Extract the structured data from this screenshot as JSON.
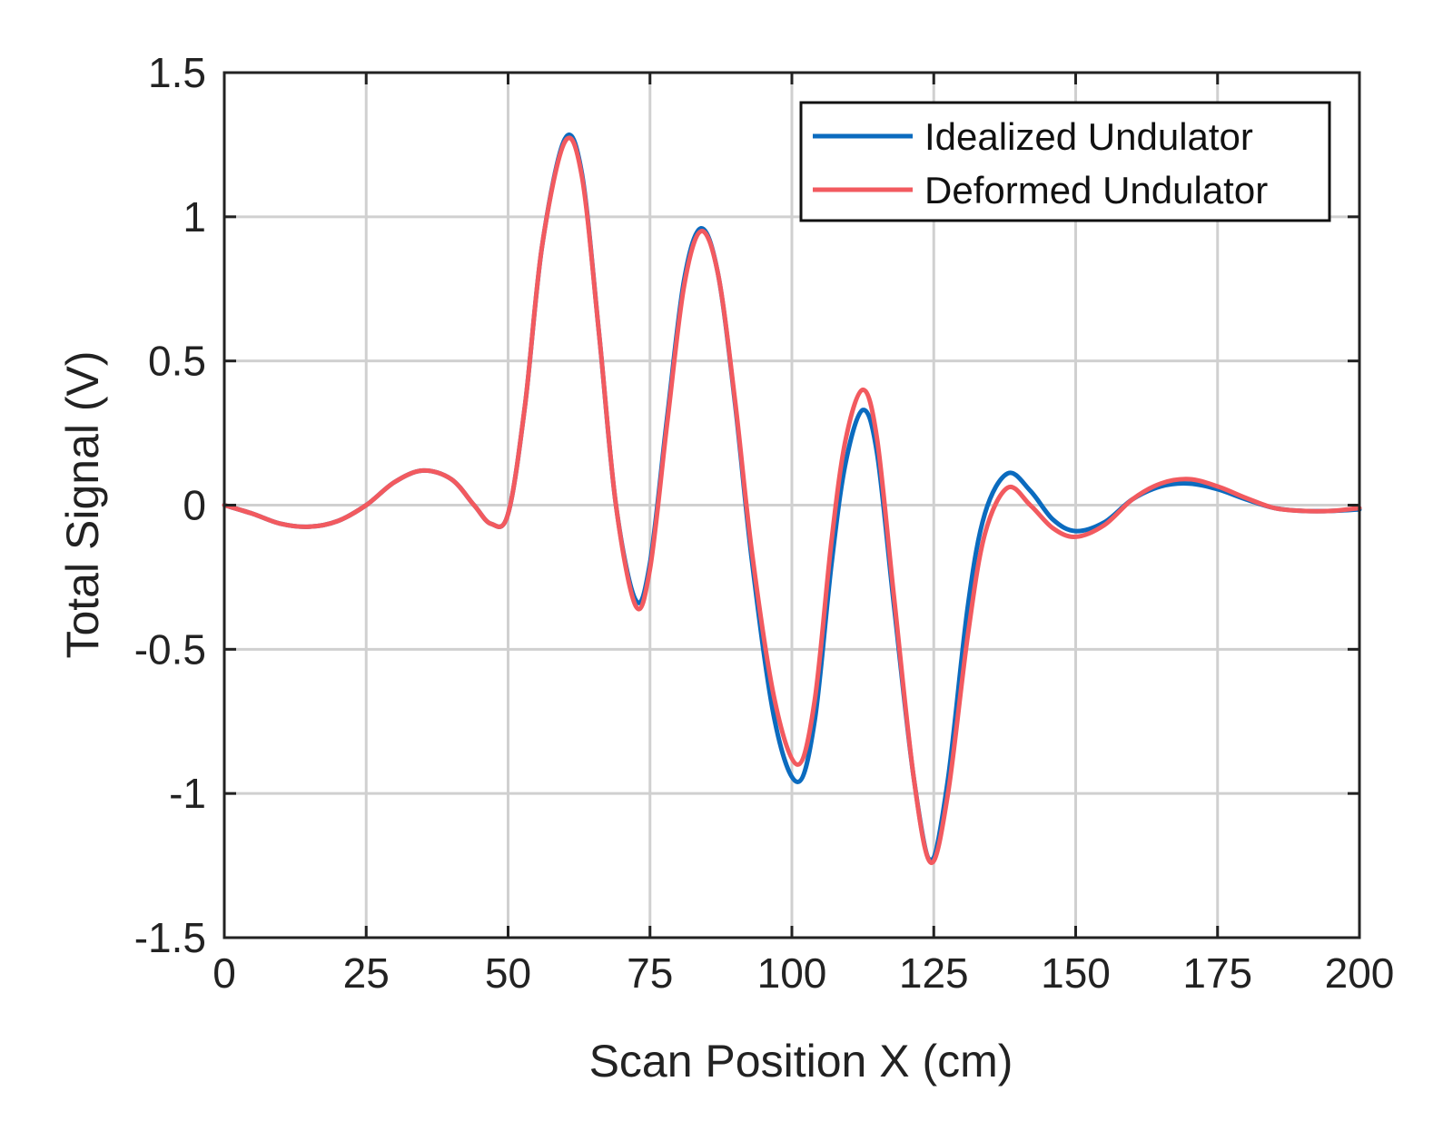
{
  "chart_data": {
    "type": "line",
    "title": "",
    "xlabel": "Scan Position X (cm)",
    "ylabel": "Total Signal (V)",
    "xlim": [
      0,
      200
    ],
    "ylim": [
      -1.5,
      1.5
    ],
    "xticks": [
      0,
      25,
      50,
      75,
      100,
      125,
      150,
      175,
      200
    ],
    "yticks": [
      1.5,
      1,
      0.5,
      0,
      -0.5,
      -1,
      -1.5
    ],
    "xtick_labels": [
      "0",
      "25",
      "50",
      "75",
      "100",
      "125",
      "150",
      "175",
      "200"
    ],
    "ytick_labels": [
      "1.5",
      "1",
      "0.5",
      "0",
      "-0.5",
      "-1",
      "-1.5"
    ],
    "grid": true,
    "legend_position": "top-right",
    "series": [
      {
        "name": "Idealized Undulator",
        "color": "#0b6bbf",
        "points": [
          [
            0,
            0
          ],
          [
            5,
            -0.03
          ],
          [
            10,
            -0.065
          ],
          [
            15,
            -0.075
          ],
          [
            20,
            -0.055
          ],
          [
            25,
            0.0
          ],
          [
            30,
            0.08
          ],
          [
            35,
            0.12
          ],
          [
            40,
            0.09
          ],
          [
            44,
            0.0
          ],
          [
            47,
            -0.065
          ],
          [
            50,
            -0.03
          ],
          [
            53,
            0.35
          ],
          [
            56,
            0.9
          ],
          [
            60,
            1.27
          ],
          [
            63,
            1.15
          ],
          [
            66,
            0.6
          ],
          [
            69,
            0.0
          ],
          [
            72.5,
            -0.33
          ],
          [
            75,
            -0.2
          ],
          [
            78,
            0.3
          ],
          [
            81,
            0.78
          ],
          [
            84,
            0.96
          ],
          [
            87,
            0.8
          ],
          [
            90,
            0.35
          ],
          [
            93,
            -0.2
          ],
          [
            97,
            -0.75
          ],
          [
            101,
            -0.96
          ],
          [
            104,
            -0.75
          ],
          [
            107,
            -0.2
          ],
          [
            109.5,
            0.15
          ],
          [
            112.5,
            0.33
          ],
          [
            115,
            0.18
          ],
          [
            118,
            -0.35
          ],
          [
            121.5,
            -0.95
          ],
          [
            124.5,
            -1.23
          ],
          [
            127.5,
            -0.95
          ],
          [
            131,
            -0.35
          ],
          [
            134,
            -0.03
          ],
          [
            138,
            0.11
          ],
          [
            142,
            0.05
          ],
          [
            146,
            -0.05
          ],
          [
            150,
            -0.09
          ],
          [
            155,
            -0.06
          ],
          [
            160,
            0.02
          ],
          [
            165,
            0.065
          ],
          [
            170,
            0.075
          ],
          [
            175,
            0.055
          ],
          [
            180,
            0.02
          ],
          [
            185,
            -0.01
          ],
          [
            190,
            -0.02
          ],
          [
            195,
            -0.02
          ],
          [
            200,
            -0.015
          ]
        ]
      },
      {
        "name": "Deformed Undulator",
        "color": "#f25a5f",
        "points": [
          [
            0,
            0
          ],
          [
            5,
            -0.03
          ],
          [
            10,
            -0.065
          ],
          [
            15,
            -0.075
          ],
          [
            20,
            -0.055
          ],
          [
            25,
            0.0
          ],
          [
            30,
            0.08
          ],
          [
            35,
            0.12
          ],
          [
            40,
            0.09
          ],
          [
            44,
            0.0
          ],
          [
            47,
            -0.065
          ],
          [
            50,
            -0.03
          ],
          [
            53,
            0.35
          ],
          [
            56,
            0.9
          ],
          [
            60,
            1.26
          ],
          [
            63,
            1.14
          ],
          [
            66,
            0.6
          ],
          [
            69,
            0.0
          ],
          [
            72.5,
            -0.35
          ],
          [
            75,
            -0.22
          ],
          [
            78,
            0.28
          ],
          [
            81,
            0.76
          ],
          [
            84,
            0.95
          ],
          [
            87,
            0.8
          ],
          [
            90,
            0.36
          ],
          [
            93,
            -0.17
          ],
          [
            97,
            -0.68
          ],
          [
            101,
            -0.9
          ],
          [
            104,
            -0.68
          ],
          [
            107,
            -0.12
          ],
          [
            109.5,
            0.23
          ],
          [
            112.5,
            0.4
          ],
          [
            115,
            0.23
          ],
          [
            118,
            -0.32
          ],
          [
            121.5,
            -0.95
          ],
          [
            124.5,
            -1.24
          ],
          [
            127.5,
            -1.0
          ],
          [
            131,
            -0.45
          ],
          [
            134,
            -0.1
          ],
          [
            138,
            0.06
          ],
          [
            142,
            0.0
          ],
          [
            146,
            -0.08
          ],
          [
            150,
            -0.11
          ],
          [
            155,
            -0.07
          ],
          [
            160,
            0.02
          ],
          [
            165,
            0.075
          ],
          [
            170,
            0.09
          ],
          [
            175,
            0.065
          ],
          [
            180,
            0.025
          ],
          [
            185,
            -0.01
          ],
          [
            190,
            -0.02
          ],
          [
            195,
            -0.02
          ],
          [
            200,
            -0.01
          ]
        ]
      }
    ]
  }
}
